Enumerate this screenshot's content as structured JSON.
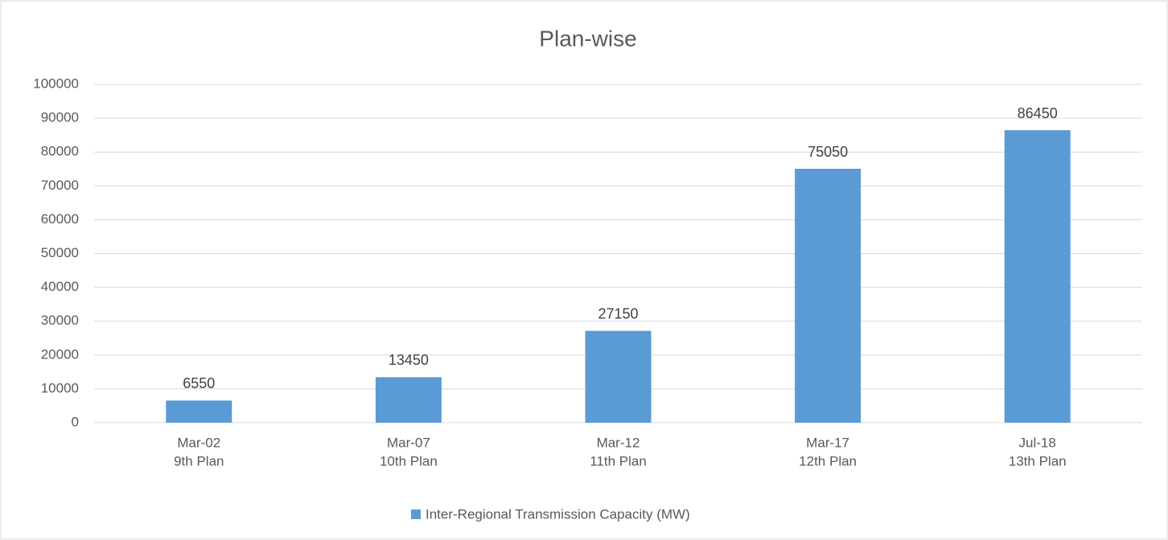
{
  "chart_data": {
    "type": "bar",
    "title": "Plan-wise",
    "categories": [
      [
        "Mar-02",
        "9th Plan"
      ],
      [
        "Mar-07",
        "10th Plan"
      ],
      [
        "Mar-12",
        "11th Plan"
      ],
      [
        "Mar-17",
        "12th Plan"
      ],
      [
        "Jul-18",
        "13th Plan"
      ]
    ],
    "series": [
      {
        "name": "Inter-Regional Transmission Capacity (MW)",
        "color": "#5b9bd5",
        "values": [
          6550,
          13450,
          27150,
          75050,
          86450
        ]
      }
    ],
    "ylim": [
      0,
      100000
    ],
    "yticks": [
      0,
      10000,
      20000,
      30000,
      40000,
      50000,
      60000,
      70000,
      80000,
      90000,
      100000
    ],
    "grid": true,
    "legend": "bottom"
  }
}
